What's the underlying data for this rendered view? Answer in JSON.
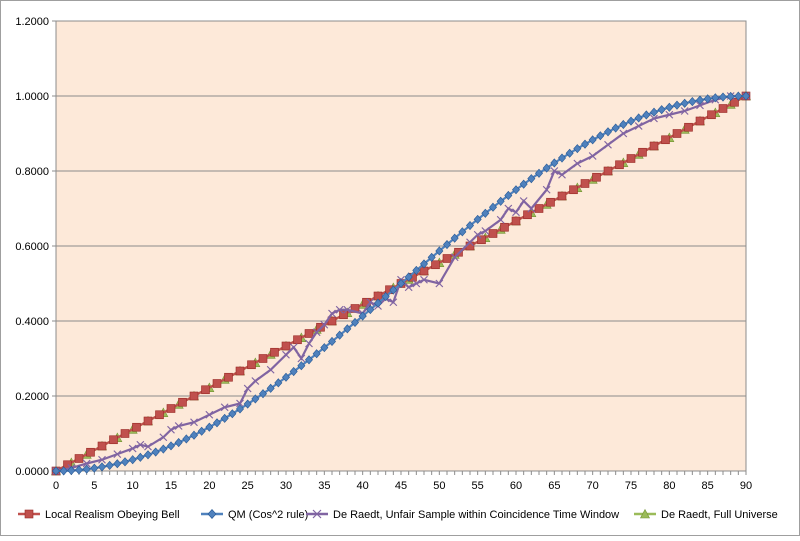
{
  "chart_data": {
    "type": "line",
    "title": "",
    "xlabel": "",
    "ylabel": "",
    "xlim": [
      0,
      90
    ],
    "ylim": [
      0,
      1.2
    ],
    "y_ticks": [
      "0.0000",
      "0.2000",
      "0.4000",
      "0.6000",
      "0.8000",
      "1.0000",
      "1.2000"
    ],
    "x_ticks": [
      "0",
      "5",
      "10",
      "15",
      "20",
      "25",
      "30",
      "35",
      "40",
      "45",
      "50",
      "55",
      "60",
      "65",
      "70",
      "75",
      "80",
      "85",
      "90"
    ],
    "grid": true,
    "plot_background": "#FDE9D9",
    "legend_position": "bottom",
    "series": [
      {
        "name": "Local Realism Obeying Bell",
        "color": "#C0504D",
        "marker": "square",
        "formula": "x / 90",
        "x_step": 1.5
      },
      {
        "name": "QM (Cos^2 rule)",
        "color": "#4F81BD",
        "marker": "diamond",
        "formula": "sin^2(x deg)",
        "x_step": 1
      },
      {
        "name": "De Raedt, Unfair Sample within Coincidence Time Window",
        "color": "#8064A2",
        "marker": "x",
        "x": [
          0,
          2,
          4,
          6,
          8,
          10,
          11,
          12,
          14,
          15,
          16,
          18,
          20,
          22,
          24,
          25,
          26,
          28,
          30,
          31,
          32,
          33,
          34,
          35,
          36,
          37,
          38,
          40,
          41,
          42,
          43,
          44,
          45,
          46,
          47,
          48,
          50,
          52,
          54,
          55,
          56,
          58,
          59,
          60,
          61,
          62,
          64,
          65,
          66,
          68,
          70,
          72,
          74,
          76,
          78,
          80,
          82,
          84,
          86,
          88,
          90
        ],
        "values": [
          0.0,
          0.008,
          0.02,
          0.03,
          0.045,
          0.06,
          0.07,
          0.065,
          0.09,
          0.11,
          0.12,
          0.13,
          0.15,
          0.17,
          0.18,
          0.22,
          0.24,
          0.27,
          0.31,
          0.33,
          0.3,
          0.34,
          0.37,
          0.39,
          0.42,
          0.43,
          0.43,
          0.42,
          0.45,
          0.44,
          0.46,
          0.45,
          0.51,
          0.49,
          0.5,
          0.51,
          0.5,
          0.57,
          0.61,
          0.63,
          0.64,
          0.67,
          0.7,
          0.69,
          0.72,
          0.7,
          0.75,
          0.8,
          0.79,
          0.82,
          0.84,
          0.87,
          0.9,
          0.92,
          0.94,
          0.95,
          0.96,
          0.975,
          0.99,
          1.0,
          1.0
        ]
      },
      {
        "name": "De Raedt, Full Universe",
        "color": "#9BBB59",
        "marker": "triangle",
        "formula": "x / 90",
        "x_step": 2
      }
    ]
  }
}
